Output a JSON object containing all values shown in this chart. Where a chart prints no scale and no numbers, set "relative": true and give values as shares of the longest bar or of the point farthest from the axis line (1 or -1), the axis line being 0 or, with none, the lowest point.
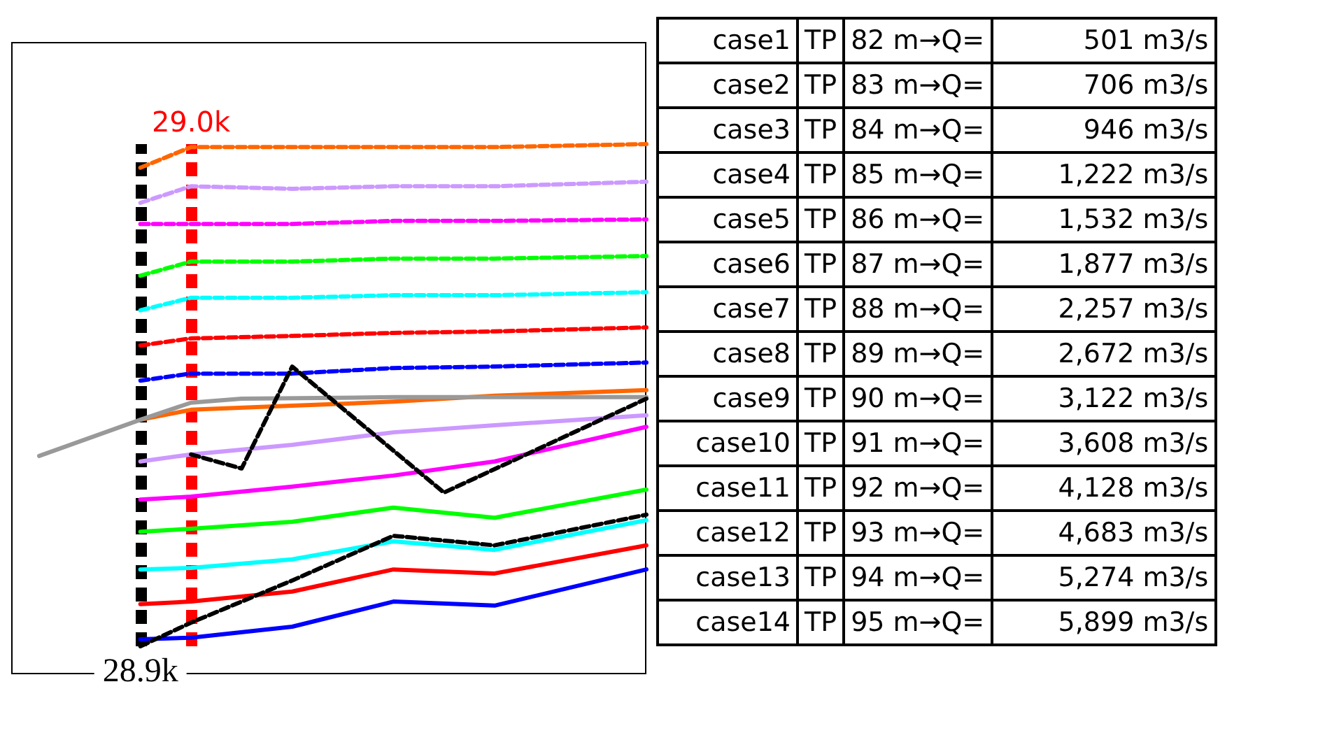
{
  "chart_data": {
    "type": "line",
    "relative": true,
    "tick_labels": false,
    "grid": false,
    "marker": "none",
    "categories": [
      null,
      null,
      "28.9k",
      "29.0k",
      null,
      null,
      null,
      null,
      null,
      null,
      null,
      null,
      null
    ],
    "series": [
      {
        "color": "#ff6600",
        "line_style": "dashed",
        "values": [
          null,
          null,
          0.953,
          0.994,
          null,
          0.994,
          null,
          0.994,
          null,
          0.994,
          null,
          null,
          1.0
        ]
      },
      {
        "color": "#cc99ff",
        "line_style": "dashed",
        "values": [
          null,
          null,
          0.883,
          0.916,
          null,
          0.911,
          null,
          0.916,
          null,
          0.916,
          null,
          null,
          0.925
        ]
      },
      {
        "color": "#ff00ff",
        "line_style": "dashed",
        "values": [
          null,
          null,
          0.841,
          0.841,
          null,
          0.841,
          null,
          0.847,
          null,
          0.847,
          null,
          null,
          0.85
        ]
      },
      {
        "color": "#00ff00",
        "line_style": "dashed",
        "values": [
          null,
          null,
          0.738,
          0.766,
          null,
          0.766,
          null,
          0.772,
          null,
          0.772,
          null,
          null,
          0.777
        ]
      },
      {
        "color": "#00ffff",
        "line_style": "dashed",
        "values": [
          null,
          null,
          0.669,
          0.694,
          null,
          0.694,
          null,
          0.699,
          null,
          0.699,
          null,
          null,
          0.705
        ]
      },
      {
        "color": "#ff0000",
        "line_style": "dashed",
        "values": [
          null,
          null,
          0.599,
          0.613,
          null,
          0.618,
          null,
          0.624,
          null,
          0.627,
          null,
          null,
          0.635
        ]
      },
      {
        "color": "#0000ff",
        "line_style": "dashed",
        "values": [
          null,
          null,
          0.529,
          0.543,
          null,
          0.543,
          null,
          0.554,
          null,
          0.557,
          null,
          null,
          0.565
        ]
      },
      {
        "color": "#ff6600",
        "line_style": "solid",
        "values": [
          null,
          null,
          0.451,
          0.471,
          null,
          0.479,
          null,
          0.487,
          null,
          0.499,
          null,
          null,
          0.51
        ]
      },
      {
        "color": "#cc99ff",
        "line_style": "solid",
        "values": [
          null,
          null,
          0.368,
          0.382,
          null,
          0.401,
          null,
          0.426,
          null,
          0.44,
          null,
          null,
          0.46
        ]
      },
      {
        "color": "#ff00ff",
        "line_style": "solid",
        "values": [
          null,
          null,
          0.292,
          0.298,
          null,
          0.318,
          null,
          0.34,
          null,
          0.368,
          null,
          null,
          0.437
        ]
      },
      {
        "color": "#00ff00",
        "line_style": "solid",
        "values": [
          null,
          null,
          0.228,
          0.234,
          null,
          0.248,
          null,
          0.276,
          null,
          0.256,
          null,
          null,
          0.312
        ]
      },
      {
        "color": "#00ffff",
        "line_style": "solid",
        "values": [
          null,
          null,
          0.153,
          0.156,
          null,
          0.173,
          null,
          0.209,
          null,
          0.192,
          null,
          null,
          0.251
        ]
      },
      {
        "color": "#ff0000",
        "line_style": "solid",
        "values": [
          null,
          null,
          0.084,
          0.089,
          null,
          0.109,
          null,
          0.153,
          null,
          0.145,
          null,
          null,
          0.201
        ]
      },
      {
        "color": "#0000ff",
        "line_style": "solid",
        "values": [
          null,
          null,
          0.014,
          0.017,
          null,
          0.039,
          null,
          0.089,
          null,
          0.081,
          null,
          null,
          0.153
        ]
      },
      {
        "color": "#999999",
        "line_style": "solid",
        "values": [
          0.379,
          null,
          0.451,
          0.485,
          0.493,
          null,
          null,
          0.496,
          null,
          null,
          null,
          null,
          0.496
        ]
      },
      {
        "color": "#000000",
        "line_style": "dashed",
        "values": [
          null,
          null,
          null,
          0.382,
          0.354,
          0.557,
          null,
          null,
          0.306,
          null,
          null,
          null,
          0.493
        ]
      },
      {
        "color": "#000000",
        "line_style": "dashed",
        "values": [
          null,
          null,
          0.0,
          0.047,
          null,
          0.131,
          null,
          0.22,
          null,
          0.201,
          null,
          null,
          0.262
        ]
      }
    ],
    "ref_lines": [
      {
        "axis": "x",
        "value": "28.9k",
        "color": "#000000",
        "line_style": "dashed"
      },
      {
        "axis": "x",
        "value": "29.0k",
        "color": "#ff0000",
        "line_style": "dashed"
      }
    ],
    "annotations": [
      "case1 TP 82 m→Q= 501 m3/s",
      "case2 TP 83 m→Q= 706 m3/s",
      "case3 TP 84 m→Q= 946 m3/s",
      "case4 TP 85 m→Q= 1,222 m3/s",
      "case5 TP 86 m→Q= 1,532 m3/s",
      "case6 TP 87 m→Q= 1,877 m3/s",
      "case7 TP 88 m→Q= 2,257 m3/s",
      "case8 TP 89 m→Q= 2,672 m3/s",
      "case9 TP 90 m→Q= 3,122 m3/s",
      "case10 TP 91 m→Q= 3,608 m3/s",
      "case11 TP 92 m→Q= 4,128 m3/s",
      "case12 TP 93 m→Q= 4,683 m3/s",
      "case13 TP 94 m→Q= 5,274 m3/s",
      "case14 TP 95 m→Q= 5,899 m3/s"
    ]
  }
}
